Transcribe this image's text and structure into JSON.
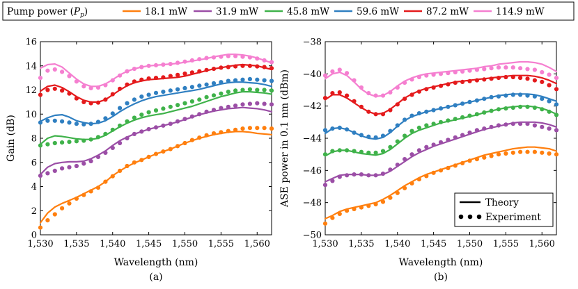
{
  "legend": {
    "title": "Pump power (",
    "title_symbol": "P",
    "title_sub": "p",
    "title_end": ")",
    "entries": [
      {
        "label": "18.1 mW",
        "color": "#ff7f0e"
      },
      {
        "label": "31.9 mW",
        "color": "#9b4ea6"
      },
      {
        "label": "45.8 mW",
        "color": "#3fb24a"
      },
      {
        "label": "59.6 mW",
        "color": "#2f7fc1"
      },
      {
        "label": "87.2 mW",
        "color": "#e41a1c"
      },
      {
        "label": "114.9 mW",
        "color": "#f57fd0"
      }
    ]
  },
  "style_legend": {
    "theory": "Theory",
    "experiment": "Experiment"
  },
  "chart_data": [
    {
      "type": "line",
      "panel": "(a)",
      "xlabel": "Wavelength (nm)",
      "ylabel": "Gain (dB)",
      "xlim": [
        1530,
        1562
      ],
      "ylim": [
        0,
        16
      ],
      "xticks": [
        1530,
        1535,
        1540,
        1545,
        1550,
        1555,
        1560
      ],
      "xtick_labels": [
        "1,530",
        "1,535",
        "1,540",
        "1,545",
        "1,550",
        "1,555",
        "1,560"
      ],
      "yticks": [
        0,
        2,
        4,
        6,
        8,
        10,
        12,
        14,
        16
      ],
      "ytick_labels": [
        "0",
        "2",
        "4",
        "6",
        "8",
        "10",
        "12",
        "14",
        "16"
      ],
      "x": [
        1530,
        1531,
        1532,
        1533,
        1534,
        1535,
        1536,
        1537,
        1538,
        1539,
        1540,
        1541,
        1542,
        1543,
        1544,
        1545,
        1546,
        1547,
        1548,
        1549,
        1550,
        1551,
        1552,
        1553,
        1554,
        1555,
        1556,
        1557,
        1558,
        1559,
        1560,
        1561,
        1562
      ],
      "series": [
        {
          "name": "18.1 mW",
          "theory": [
            1.0,
            1.8,
            2.3,
            2.6,
            2.85,
            3.1,
            3.4,
            3.7,
            4.0,
            4.4,
            4.9,
            5.3,
            5.65,
            5.95,
            6.2,
            6.45,
            6.7,
            6.9,
            7.1,
            7.35,
            7.6,
            7.8,
            8.0,
            8.15,
            8.3,
            8.4,
            8.5,
            8.55,
            8.55,
            8.5,
            8.4,
            8.35,
            8.3
          ],
          "experiment": [
            0.6,
            1.2,
            1.7,
            2.2,
            2.6,
            3.0,
            3.3,
            3.6,
            3.9,
            4.4,
            4.85,
            5.3,
            5.7,
            6.0,
            6.2,
            6.45,
            6.7,
            6.9,
            7.1,
            7.35,
            7.6,
            7.85,
            8.05,
            8.25,
            8.4,
            8.5,
            8.6,
            8.7,
            8.8,
            8.85,
            8.85,
            8.85,
            8.8
          ]
        },
        {
          "name": "31.9 mW",
          "theory": [
            5.0,
            5.6,
            5.9,
            6.0,
            6.05,
            6.05,
            6.1,
            6.3,
            6.6,
            6.95,
            7.4,
            7.8,
            8.1,
            8.35,
            8.55,
            8.75,
            8.9,
            9.05,
            9.2,
            9.35,
            9.55,
            9.75,
            9.95,
            10.1,
            10.25,
            10.35,
            10.45,
            10.5,
            10.55,
            10.5,
            10.45,
            10.35,
            10.2
          ],
          "experiment": [
            4.9,
            5.1,
            5.3,
            5.5,
            5.6,
            5.7,
            5.9,
            6.1,
            6.45,
            6.8,
            7.2,
            7.6,
            8.0,
            8.35,
            8.55,
            8.75,
            8.9,
            9.05,
            9.2,
            9.4,
            9.6,
            9.8,
            10.0,
            10.2,
            10.35,
            10.5,
            10.6,
            10.7,
            10.8,
            10.85,
            10.9,
            10.85,
            10.8
          ]
        },
        {
          "name": "45.8 mW",
          "theory": [
            7.5,
            8.0,
            8.2,
            8.15,
            8.05,
            7.95,
            7.9,
            7.9,
            8.0,
            8.25,
            8.6,
            8.95,
            9.25,
            9.5,
            9.7,
            9.85,
            9.95,
            10.05,
            10.2,
            10.35,
            10.5,
            10.65,
            10.85,
            11.05,
            11.25,
            11.45,
            11.6,
            11.75,
            11.85,
            11.85,
            11.8,
            11.75,
            11.65
          ],
          "experiment": [
            7.4,
            7.5,
            7.6,
            7.65,
            7.7,
            7.75,
            7.8,
            7.9,
            8.1,
            8.35,
            8.7,
            9.05,
            9.4,
            9.7,
            9.95,
            10.15,
            10.3,
            10.45,
            10.6,
            10.75,
            10.9,
            11.05,
            11.2,
            11.4,
            11.55,
            11.7,
            11.85,
            11.95,
            12.0,
            12.05,
            12.0,
            12.0,
            11.95
          ]
        },
        {
          "name": "59.6 mW",
          "theory": [
            9.4,
            9.7,
            9.9,
            9.95,
            9.75,
            9.45,
            9.3,
            9.2,
            9.25,
            9.45,
            9.8,
            10.2,
            10.55,
            10.85,
            11.1,
            11.3,
            11.45,
            11.55,
            11.65,
            11.75,
            11.85,
            11.95,
            12.05,
            12.2,
            12.35,
            12.5,
            12.6,
            12.65,
            12.65,
            12.6,
            12.55,
            12.45,
            12.3
          ],
          "experiment": [
            9.3,
            9.45,
            9.45,
            9.4,
            9.3,
            9.2,
            9.15,
            9.2,
            9.35,
            9.65,
            10.05,
            10.5,
            10.9,
            11.2,
            11.45,
            11.6,
            11.75,
            11.85,
            11.95,
            12.05,
            12.15,
            12.25,
            12.35,
            12.45,
            12.55,
            12.65,
            12.75,
            12.8,
            12.85,
            12.9,
            12.85,
            12.8,
            12.75
          ]
        },
        {
          "name": "87.2 mW",
          "theory": [
            11.9,
            12.3,
            12.4,
            12.2,
            11.85,
            11.45,
            11.15,
            11.0,
            11.0,
            11.2,
            11.6,
            12.0,
            12.35,
            12.6,
            12.75,
            12.85,
            12.9,
            12.95,
            13.0,
            13.05,
            13.15,
            13.3,
            13.45,
            13.6,
            13.75,
            13.85,
            13.95,
            14.05,
            14.1,
            14.05,
            14.0,
            13.85,
            13.7
          ],
          "experiment": [
            11.6,
            12.0,
            12.1,
            11.95,
            11.7,
            11.3,
            11.0,
            10.9,
            10.95,
            11.2,
            11.65,
            12.1,
            12.45,
            12.7,
            12.85,
            12.95,
            13.0,
            13.05,
            13.15,
            13.25,
            13.35,
            13.45,
            13.55,
            13.65,
            13.75,
            13.85,
            13.9,
            13.95,
            14.0,
            14.0,
            13.95,
            13.9,
            13.8
          ]
        },
        {
          "name": "114.9 mW",
          "theory": [
            13.8,
            14.1,
            14.15,
            13.9,
            13.4,
            12.9,
            12.5,
            12.3,
            12.3,
            12.5,
            12.85,
            13.25,
            13.55,
            13.75,
            13.9,
            14.0,
            14.05,
            14.1,
            14.15,
            14.2,
            14.3,
            14.4,
            14.5,
            14.6,
            14.75,
            14.85,
            14.95,
            14.95,
            14.9,
            14.8,
            14.65,
            14.45,
            14.25
          ],
          "experiment": [
            13.0,
            13.6,
            13.7,
            13.5,
            13.15,
            12.7,
            12.3,
            12.15,
            12.2,
            12.4,
            12.8,
            13.2,
            13.55,
            13.75,
            13.9,
            14.0,
            14.05,
            14.1,
            14.15,
            14.25,
            14.35,
            14.45,
            14.55,
            14.65,
            14.7,
            14.75,
            14.8,
            14.8,
            14.75,
            14.7,
            14.6,
            14.45,
            14.3
          ]
        }
      ]
    },
    {
      "type": "line",
      "panel": "(b)",
      "xlabel": "Wavelength (nm)",
      "ylabel": "ASE power in 0.1 nm (dBm)",
      "xlim": [
        1530,
        1562
      ],
      "ylim": [
        -50,
        -38
      ],
      "xticks": [
        1530,
        1535,
        1540,
        1545,
        1550,
        1555,
        1560
      ],
      "xtick_labels": [
        "1,530",
        "1,535",
        "1,540",
        "1,545",
        "1,550",
        "1,555",
        "1,560"
      ],
      "yticks": [
        -50,
        -48,
        -46,
        -44,
        -42,
        -40,
        -38
      ],
      "ytick_labels": [
        "−50",
        "−48",
        "−46",
        "−44",
        "−42",
        "−40",
        "−38"
      ],
      "x": [
        1530,
        1531,
        1532,
        1533,
        1534,
        1535,
        1536,
        1537,
        1538,
        1539,
        1540,
        1541,
        1542,
        1543,
        1544,
        1545,
        1546,
        1547,
        1548,
        1549,
        1550,
        1551,
        1552,
        1553,
        1554,
        1555,
        1556,
        1557,
        1558,
        1559,
        1560,
        1561,
        1562
      ],
      "series": [
        {
          "name": "18.1 mW",
          "theory": [
            -49.0,
            -48.8,
            -48.55,
            -48.4,
            -48.3,
            -48.2,
            -48.1,
            -48.0,
            -47.8,
            -47.55,
            -47.25,
            -46.95,
            -46.7,
            -46.45,
            -46.25,
            -46.1,
            -45.95,
            -45.8,
            -45.65,
            -45.5,
            -45.35,
            -45.2,
            -45.05,
            -44.95,
            -44.85,
            -44.75,
            -44.65,
            -44.6,
            -44.55,
            -44.55,
            -44.6,
            -44.65,
            -44.8
          ],
          "experiment": [
            -49.3,
            -48.95,
            -48.7,
            -48.5,
            -48.4,
            -48.3,
            -48.2,
            -48.1,
            -47.95,
            -47.7,
            -47.4,
            -47.1,
            -46.8,
            -46.55,
            -46.35,
            -46.15,
            -46.0,
            -45.85,
            -45.7,
            -45.55,
            -45.4,
            -45.3,
            -45.2,
            -45.1,
            -45.0,
            -44.95,
            -44.9,
            -44.85,
            -44.85,
            -44.85,
            -44.9,
            -44.95,
            -45.0
          ]
        },
        {
          "name": "31.9 mW",
          "theory": [
            -46.7,
            -46.5,
            -46.3,
            -46.25,
            -46.25,
            -46.25,
            -46.3,
            -46.3,
            -46.25,
            -46.05,
            -45.75,
            -45.45,
            -45.15,
            -44.9,
            -44.7,
            -44.5,
            -44.35,
            -44.2,
            -44.05,
            -43.9,
            -43.75,
            -43.6,
            -43.45,
            -43.35,
            -43.25,
            -43.15,
            -43.05,
            -43.0,
            -43.0,
            -43.0,
            -43.05,
            -43.15,
            -43.3
          ],
          "experiment": [
            -46.9,
            -46.65,
            -46.4,
            -46.3,
            -46.25,
            -46.25,
            -46.3,
            -46.3,
            -46.2,
            -45.95,
            -45.65,
            -45.3,
            -45.0,
            -44.75,
            -44.55,
            -44.4,
            -44.25,
            -44.1,
            -43.95,
            -43.8,
            -43.65,
            -43.5,
            -43.4,
            -43.3,
            -43.2,
            -43.15,
            -43.1,
            -43.1,
            -43.1,
            -43.2,
            -43.3,
            -43.4,
            -43.5
          ]
        },
        {
          "name": "45.8 mW",
          "theory": [
            -45.1,
            -44.85,
            -44.75,
            -44.75,
            -44.85,
            -44.95,
            -45.0,
            -45.05,
            -44.95,
            -44.7,
            -44.35,
            -44.0,
            -43.7,
            -43.5,
            -43.35,
            -43.2,
            -43.05,
            -42.95,
            -42.85,
            -42.75,
            -42.65,
            -42.55,
            -42.4,
            -42.3,
            -42.2,
            -42.1,
            -42.05,
            -42.0,
            -42.0,
            -42.05,
            -42.15,
            -42.3,
            -42.5
          ],
          "experiment": [
            -45.0,
            -44.8,
            -44.75,
            -44.75,
            -44.8,
            -44.85,
            -44.9,
            -44.9,
            -44.8,
            -44.55,
            -44.2,
            -43.85,
            -43.55,
            -43.35,
            -43.2,
            -43.1,
            -43.0,
            -42.9,
            -42.8,
            -42.7,
            -42.6,
            -42.5,
            -42.4,
            -42.3,
            -42.2,
            -42.15,
            -42.1,
            -42.05,
            -42.05,
            -42.1,
            -42.2,
            -42.35,
            -42.55
          ]
        },
        {
          "name": "59.6 mW",
          "theory": [
            -43.7,
            -43.4,
            -43.35,
            -43.45,
            -43.65,
            -43.85,
            -44.0,
            -44.05,
            -43.95,
            -43.65,
            -43.25,
            -42.9,
            -42.65,
            -42.5,
            -42.35,
            -42.25,
            -42.15,
            -42.05,
            -41.95,
            -41.85,
            -41.75,
            -41.65,
            -41.55,
            -41.45,
            -41.35,
            -41.3,
            -41.25,
            -41.25,
            -41.25,
            -41.3,
            -41.4,
            -41.55,
            -41.7
          ],
          "experiment": [
            -43.5,
            -43.4,
            -43.35,
            -43.45,
            -43.65,
            -43.8,
            -43.9,
            -43.95,
            -43.85,
            -43.55,
            -43.2,
            -42.85,
            -42.6,
            -42.45,
            -42.35,
            -42.25,
            -42.15,
            -42.05,
            -41.95,
            -41.85,
            -41.75,
            -41.65,
            -41.55,
            -41.45,
            -41.4,
            -41.35,
            -41.3,
            -41.3,
            -41.35,
            -41.4,
            -41.55,
            -41.7,
            -41.9
          ]
        },
        {
          "name": "87.2 mW",
          "theory": [
            -41.6,
            -41.3,
            -41.3,
            -41.5,
            -41.8,
            -42.1,
            -42.35,
            -42.5,
            -42.45,
            -42.2,
            -41.85,
            -41.5,
            -41.25,
            -41.05,
            -40.9,
            -40.8,
            -40.7,
            -40.6,
            -40.5,
            -40.45,
            -40.4,
            -40.35,
            -40.3,
            -40.25,
            -40.2,
            -40.15,
            -40.1,
            -40.1,
            -40.1,
            -40.15,
            -40.25,
            -40.4,
            -40.6
          ],
          "experiment": [
            -41.5,
            -41.2,
            -41.15,
            -41.35,
            -41.7,
            -42.05,
            -42.35,
            -42.5,
            -42.5,
            -42.25,
            -41.9,
            -41.55,
            -41.3,
            -41.1,
            -40.95,
            -40.85,
            -40.75,
            -40.65,
            -40.55,
            -40.5,
            -40.45,
            -40.4,
            -40.35,
            -40.3,
            -40.25,
            -40.2,
            -40.2,
            -40.25,
            -40.3,
            -40.4,
            -40.5,
            -40.7,
            -40.95
          ]
        },
        {
          "name": "114.9 mW",
          "theory": [
            -40.3,
            -40.0,
            -39.9,
            -40.1,
            -40.5,
            -40.95,
            -41.25,
            -41.4,
            -41.35,
            -41.1,
            -40.75,
            -40.45,
            -40.25,
            -40.1,
            -40.0,
            -39.95,
            -39.9,
            -39.85,
            -39.8,
            -39.75,
            -39.7,
            -39.65,
            -39.55,
            -39.5,
            -39.4,
            -39.35,
            -39.3,
            -39.25,
            -39.25,
            -39.3,
            -39.4,
            -39.6,
            -39.85
          ],
          "experiment": [
            -40.1,
            -39.85,
            -39.75,
            -39.95,
            -40.4,
            -40.85,
            -41.2,
            -41.35,
            -41.35,
            -41.15,
            -40.85,
            -40.55,
            -40.35,
            -40.2,
            -40.1,
            -40.05,
            -40.0,
            -39.95,
            -39.9,
            -39.85,
            -39.8,
            -39.75,
            -39.7,
            -39.65,
            -39.6,
            -39.6,
            -39.6,
            -39.65,
            -39.7,
            -39.75,
            -39.9,
            -40.05,
            -40.25
          ]
        }
      ]
    }
  ]
}
